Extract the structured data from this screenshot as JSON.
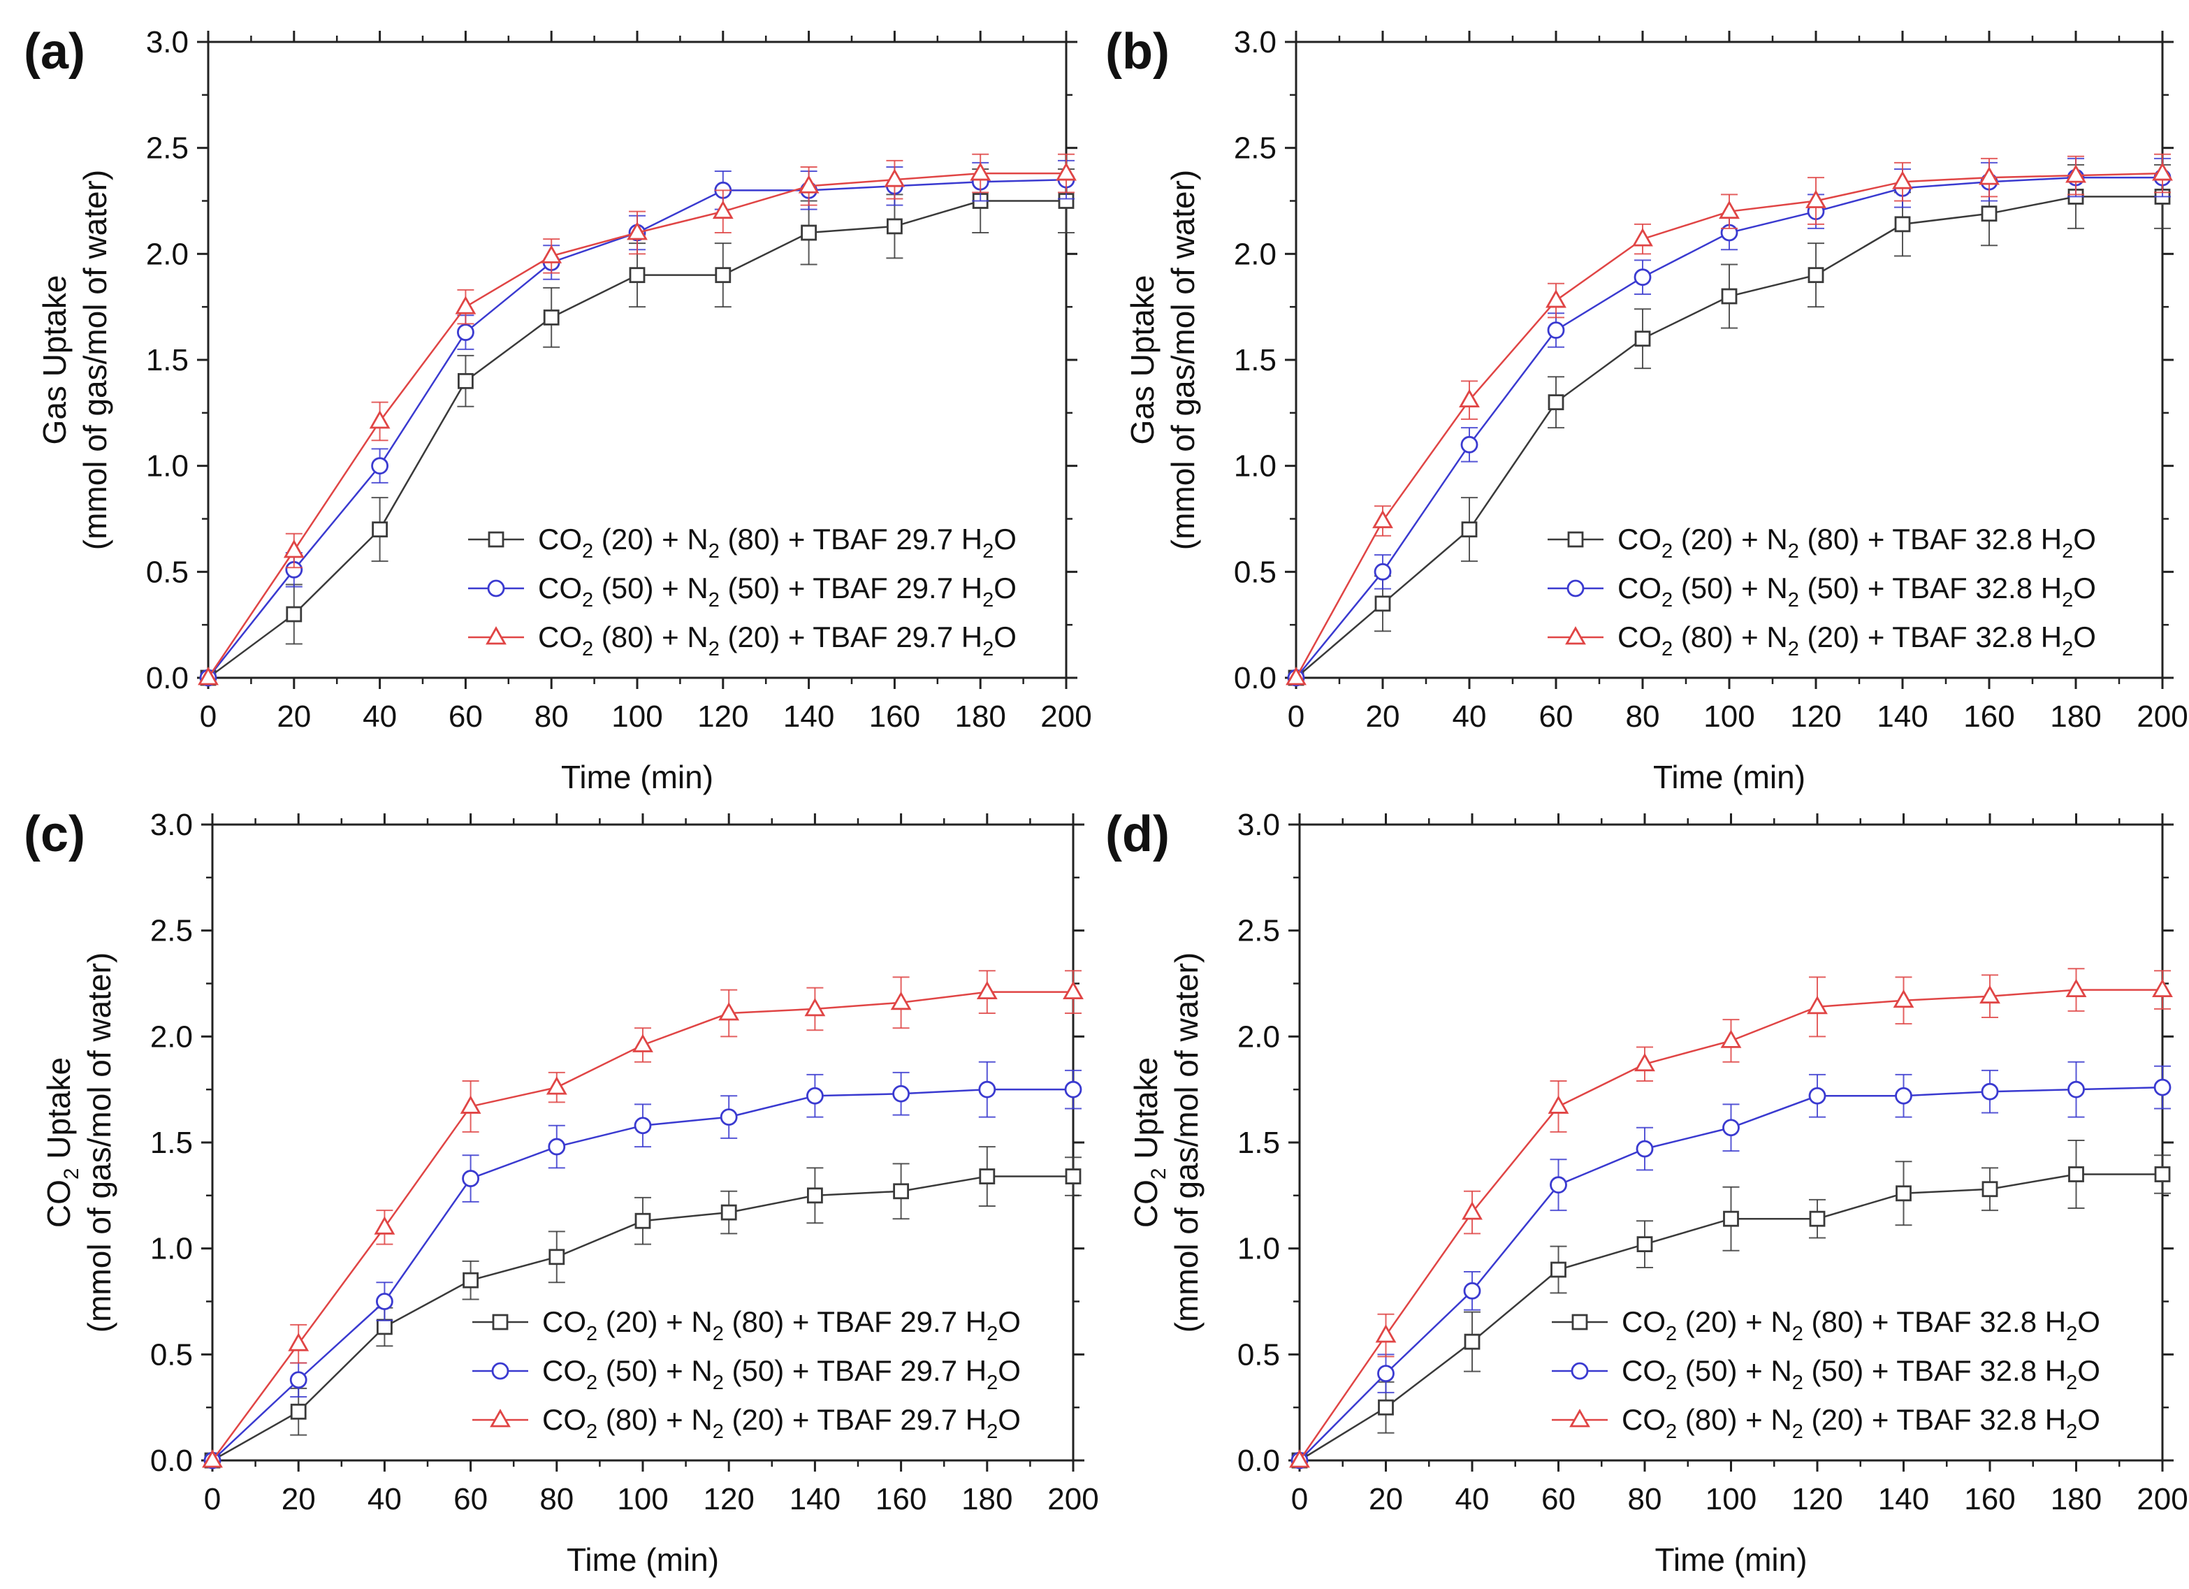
{
  "figure": {
    "colors": {
      "black": "#3a3a3a",
      "blue": "#3a3ad0",
      "red": "#e04545",
      "axis": "#222222"
    },
    "panels": [
      {
        "id": "a",
        "label": "(a)",
        "ylabel_line1": {
          "main": "Gas Uptake",
          "sub": "",
          "after": ""
        },
        "ylabel_line2": "(mmol of gas/mol of water)",
        "xlabel": "Time (min)"
      },
      {
        "id": "b",
        "label": "(b)",
        "ylabel_line1": {
          "main": "Gas Uptake",
          "sub": "",
          "after": ""
        },
        "ylabel_line2": "(mmol of gas/mol of water)",
        "xlabel": "Time (min)"
      },
      {
        "id": "c",
        "label": "(c)",
        "ylabel_line1": {
          "main": "CO",
          "sub": "2",
          "after": " Uptake"
        },
        "ylabel_line2": "(mmol of gas/mol of water)",
        "xlabel": "Time (min)"
      },
      {
        "id": "d",
        "label": "(d)",
        "ylabel_line1": {
          "main": "CO",
          "sub": "2",
          "after": " Uptake"
        },
        "ylabel_line2": "(mmol of gas/mol of water)",
        "xlabel": "Time (min)"
      }
    ]
  },
  "chart_data": [
    {
      "type": "line",
      "panel": "(a)",
      "xlabel": "Time (min)",
      "ylabel": "Gas Uptake (mmol of gas/mol of water)",
      "xlim": [
        0,
        200
      ],
      "ylim": [
        0,
        3.0
      ],
      "xticks": [
        0,
        20,
        40,
        60,
        80,
        100,
        120,
        140,
        160,
        180,
        200
      ],
      "yticks": [
        0.0,
        0.5,
        1.0,
        1.5,
        2.0,
        2.5,
        3.0
      ],
      "x": [
        0,
        20,
        40,
        60,
        80,
        100,
        120,
        140,
        160,
        180,
        200
      ],
      "series": [
        {
          "name": "CO2 (20) + N2 (80) + TBAF 29.7 H2O",
          "legend": [
            "CO",
            "2",
            " (20) + N",
            "2",
            " (80) + TBAF 29.7 H",
            "2",
            "O"
          ],
          "color": "black",
          "marker": "square",
          "values": [
            0,
            0.3,
            0.7,
            1.4,
            1.7,
            1.9,
            1.9,
            2.1,
            2.13,
            2.25,
            2.25
          ],
          "errors": [
            0,
            0.14,
            0.15,
            0.12,
            0.14,
            0.15,
            0.15,
            0.15,
            0.15,
            0.15,
            0.15
          ]
        },
        {
          "name": "CO2 (50) + N2 (50) + TBAF 29.7 H2O",
          "legend": [
            "CO",
            "2",
            " (50) + N",
            "2",
            " (50) + TBAF 29.7 H",
            "2",
            "O"
          ],
          "color": "blue",
          "marker": "circle",
          "values": [
            0,
            0.51,
            1.0,
            1.63,
            1.96,
            2.1,
            2.3,
            2.3,
            2.32,
            2.34,
            2.35
          ],
          "errors": [
            0,
            0.08,
            0.08,
            0.08,
            0.08,
            0.08,
            0.09,
            0.09,
            0.09,
            0.09,
            0.09
          ]
        },
        {
          "name": "CO2 (80) + N2 (20) + TBAF 29.7 H2O",
          "legend": [
            "CO",
            "2",
            " (80) + N",
            "2",
            " (20) + TBAF 29.7 H",
            "2",
            "O"
          ],
          "color": "red",
          "marker": "triangle",
          "values": [
            0,
            0.6,
            1.21,
            1.75,
            1.99,
            2.1,
            2.2,
            2.32,
            2.35,
            2.38,
            2.38
          ],
          "errors": [
            0,
            0.08,
            0.09,
            0.08,
            0.08,
            0.1,
            0.1,
            0.09,
            0.09,
            0.09,
            0.09
          ]
        }
      ]
    },
    {
      "type": "line",
      "panel": "(b)",
      "xlabel": "Time (min)",
      "ylabel": "Gas Uptake (mmol of gas/mol of water)",
      "xlim": [
        0,
        200
      ],
      "ylim": [
        0,
        3.0
      ],
      "xticks": [
        0,
        20,
        40,
        60,
        80,
        100,
        120,
        140,
        160,
        180,
        200
      ],
      "yticks": [
        0.0,
        0.5,
        1.0,
        1.5,
        2.0,
        2.5,
        3.0
      ],
      "x": [
        0,
        20,
        40,
        60,
        80,
        100,
        120,
        140,
        160,
        180,
        200
      ],
      "series": [
        {
          "name": "CO2 (20) + N2 (80) + TBAF 32.8 H2O",
          "legend": [
            "CO",
            "2",
            " (20) + N",
            "2",
            " (80) + TBAF 32.8 H",
            "2",
            "O"
          ],
          "color": "black",
          "marker": "square",
          "values": [
            0,
            0.35,
            0.7,
            1.3,
            1.6,
            1.8,
            1.9,
            2.14,
            2.19,
            2.27,
            2.27
          ],
          "errors": [
            0,
            0.13,
            0.15,
            0.12,
            0.14,
            0.15,
            0.15,
            0.15,
            0.15,
            0.15,
            0.15
          ]
        },
        {
          "name": "CO2 (50) + N2 (50) + TBAF 32.8 H2O",
          "legend": [
            "CO",
            "2",
            " (50) + N",
            "2",
            " (50) + TBAF 32.8 H",
            "2",
            "O"
          ],
          "color": "blue",
          "marker": "circle",
          "values": [
            0,
            0.5,
            1.1,
            1.64,
            1.89,
            2.1,
            2.2,
            2.31,
            2.34,
            2.36,
            2.36
          ],
          "errors": [
            0,
            0.08,
            0.08,
            0.08,
            0.08,
            0.08,
            0.08,
            0.09,
            0.09,
            0.09,
            0.09
          ]
        },
        {
          "name": "CO2 (80) + N2 (20) + TBAF 32.8 H2O",
          "legend": [
            "CO",
            "2",
            " (80) + N",
            "2",
            " (20) + TBAF 32.8 H",
            "2",
            "O"
          ],
          "color": "red",
          "marker": "triangle",
          "values": [
            0,
            0.74,
            1.31,
            1.78,
            2.07,
            2.2,
            2.25,
            2.34,
            2.36,
            2.37,
            2.38
          ],
          "errors": [
            0,
            0.07,
            0.09,
            0.08,
            0.07,
            0.08,
            0.11,
            0.09,
            0.09,
            0.09,
            0.09
          ]
        }
      ]
    },
    {
      "type": "line",
      "panel": "(c)",
      "xlabel": "Time (min)",
      "ylabel": "CO2 Uptake (mmol of gas/mol of water)",
      "xlim": [
        0,
        200
      ],
      "ylim": [
        0,
        3.0
      ],
      "xticks": [
        0,
        20,
        40,
        60,
        80,
        100,
        120,
        140,
        160,
        180,
        200
      ],
      "yticks": [
        0.0,
        0.5,
        1.0,
        1.5,
        2.0,
        2.5,
        3.0
      ],
      "x": [
        0,
        20,
        40,
        60,
        80,
        100,
        120,
        140,
        160,
        180,
        200
      ],
      "series": [
        {
          "name": "CO2 (20) + N2 (80) + TBAF 29.7 H2O",
          "legend": [
            "CO",
            "2",
            " (20) + N",
            "2",
            " (80) + TBAF 29.7 H",
            "2",
            "O"
          ],
          "color": "black",
          "marker": "square",
          "values": [
            0,
            0.23,
            0.63,
            0.85,
            0.96,
            1.13,
            1.17,
            1.25,
            1.27,
            1.34,
            1.34
          ],
          "errors": [
            0,
            0.11,
            0.09,
            0.09,
            0.12,
            0.11,
            0.1,
            0.13,
            0.13,
            0.14,
            0.09
          ]
        },
        {
          "name": "CO2 (50) + N2 (50) + TBAF 29.7 H2O",
          "legend": [
            "CO",
            "2",
            " (50) + N",
            "2",
            " (50) + TBAF 29.7 H",
            "2",
            "O"
          ],
          "color": "blue",
          "marker": "circle",
          "values": [
            0,
            0.38,
            0.75,
            1.33,
            1.48,
            1.58,
            1.62,
            1.72,
            1.73,
            1.75,
            1.75
          ],
          "errors": [
            0,
            0.08,
            0.09,
            0.11,
            0.1,
            0.1,
            0.1,
            0.1,
            0.1,
            0.13,
            0.09
          ]
        },
        {
          "name": "CO2 (80) + N2 (20) + TBAF 29.7 H2O",
          "legend": [
            "CO",
            "2",
            " (80) + N",
            "2",
            " (20) + TBAF 29.7 H",
            "2",
            "O"
          ],
          "color": "red",
          "marker": "triangle",
          "values": [
            0,
            0.55,
            1.1,
            1.67,
            1.76,
            1.96,
            2.11,
            2.13,
            2.16,
            2.21,
            2.21
          ],
          "errors": [
            0,
            0.09,
            0.08,
            0.12,
            0.07,
            0.08,
            0.11,
            0.1,
            0.12,
            0.1,
            0.1
          ]
        }
      ]
    },
    {
      "type": "line",
      "panel": "(d)",
      "xlabel": "Time (min)",
      "ylabel": "CO2 Uptake (mmol of gas/mol of water)",
      "xlim": [
        0,
        200
      ],
      "ylim": [
        0,
        3.0
      ],
      "xticks": [
        0,
        20,
        40,
        60,
        80,
        100,
        120,
        140,
        160,
        180,
        200
      ],
      "yticks": [
        0.0,
        0.5,
        1.0,
        1.5,
        2.0,
        2.5,
        3.0
      ],
      "x": [
        0,
        20,
        40,
        60,
        80,
        100,
        120,
        140,
        160,
        180,
        200
      ],
      "series": [
        {
          "name": "CO2 (20) + N2 (80) + TBAF 32.8 H2O",
          "legend": [
            "CO",
            "2",
            " (20) + N",
            "2",
            " (80) + TBAF 32.8 H",
            "2",
            "O"
          ],
          "color": "black",
          "marker": "square",
          "values": [
            0,
            0.25,
            0.56,
            0.9,
            1.02,
            1.14,
            1.14,
            1.26,
            1.28,
            1.35,
            1.35
          ],
          "errors": [
            0,
            0.12,
            0.14,
            0.11,
            0.11,
            0.15,
            0.09,
            0.15,
            0.1,
            0.16,
            0.09
          ]
        },
        {
          "name": "CO2 (50) + N2 (50) + TBAF 32.8 H2O",
          "legend": [
            "CO",
            "2",
            " (50) + N",
            "2",
            " (50) + TBAF 32.8 H",
            "2",
            "O"
          ],
          "color": "blue",
          "marker": "circle",
          "values": [
            0,
            0.41,
            0.8,
            1.3,
            1.47,
            1.57,
            1.72,
            1.72,
            1.74,
            1.75,
            1.76
          ],
          "errors": [
            0,
            0.09,
            0.09,
            0.12,
            0.1,
            0.11,
            0.1,
            0.1,
            0.1,
            0.13,
            0.1
          ]
        },
        {
          "name": "CO2 (80) + N2 (20) + TBAF 32.8 H2O",
          "legend": [
            "CO",
            "2",
            " (80) + N",
            "2",
            " (20) + TBAF 32.8 H",
            "2",
            "O"
          ],
          "color": "red",
          "marker": "triangle",
          "values": [
            0,
            0.59,
            1.17,
            1.67,
            1.87,
            1.98,
            2.14,
            2.17,
            2.19,
            2.22,
            2.22
          ],
          "errors": [
            0,
            0.1,
            0.1,
            0.12,
            0.08,
            0.1,
            0.14,
            0.11,
            0.1,
            0.1,
            0.09
          ]
        }
      ]
    }
  ]
}
